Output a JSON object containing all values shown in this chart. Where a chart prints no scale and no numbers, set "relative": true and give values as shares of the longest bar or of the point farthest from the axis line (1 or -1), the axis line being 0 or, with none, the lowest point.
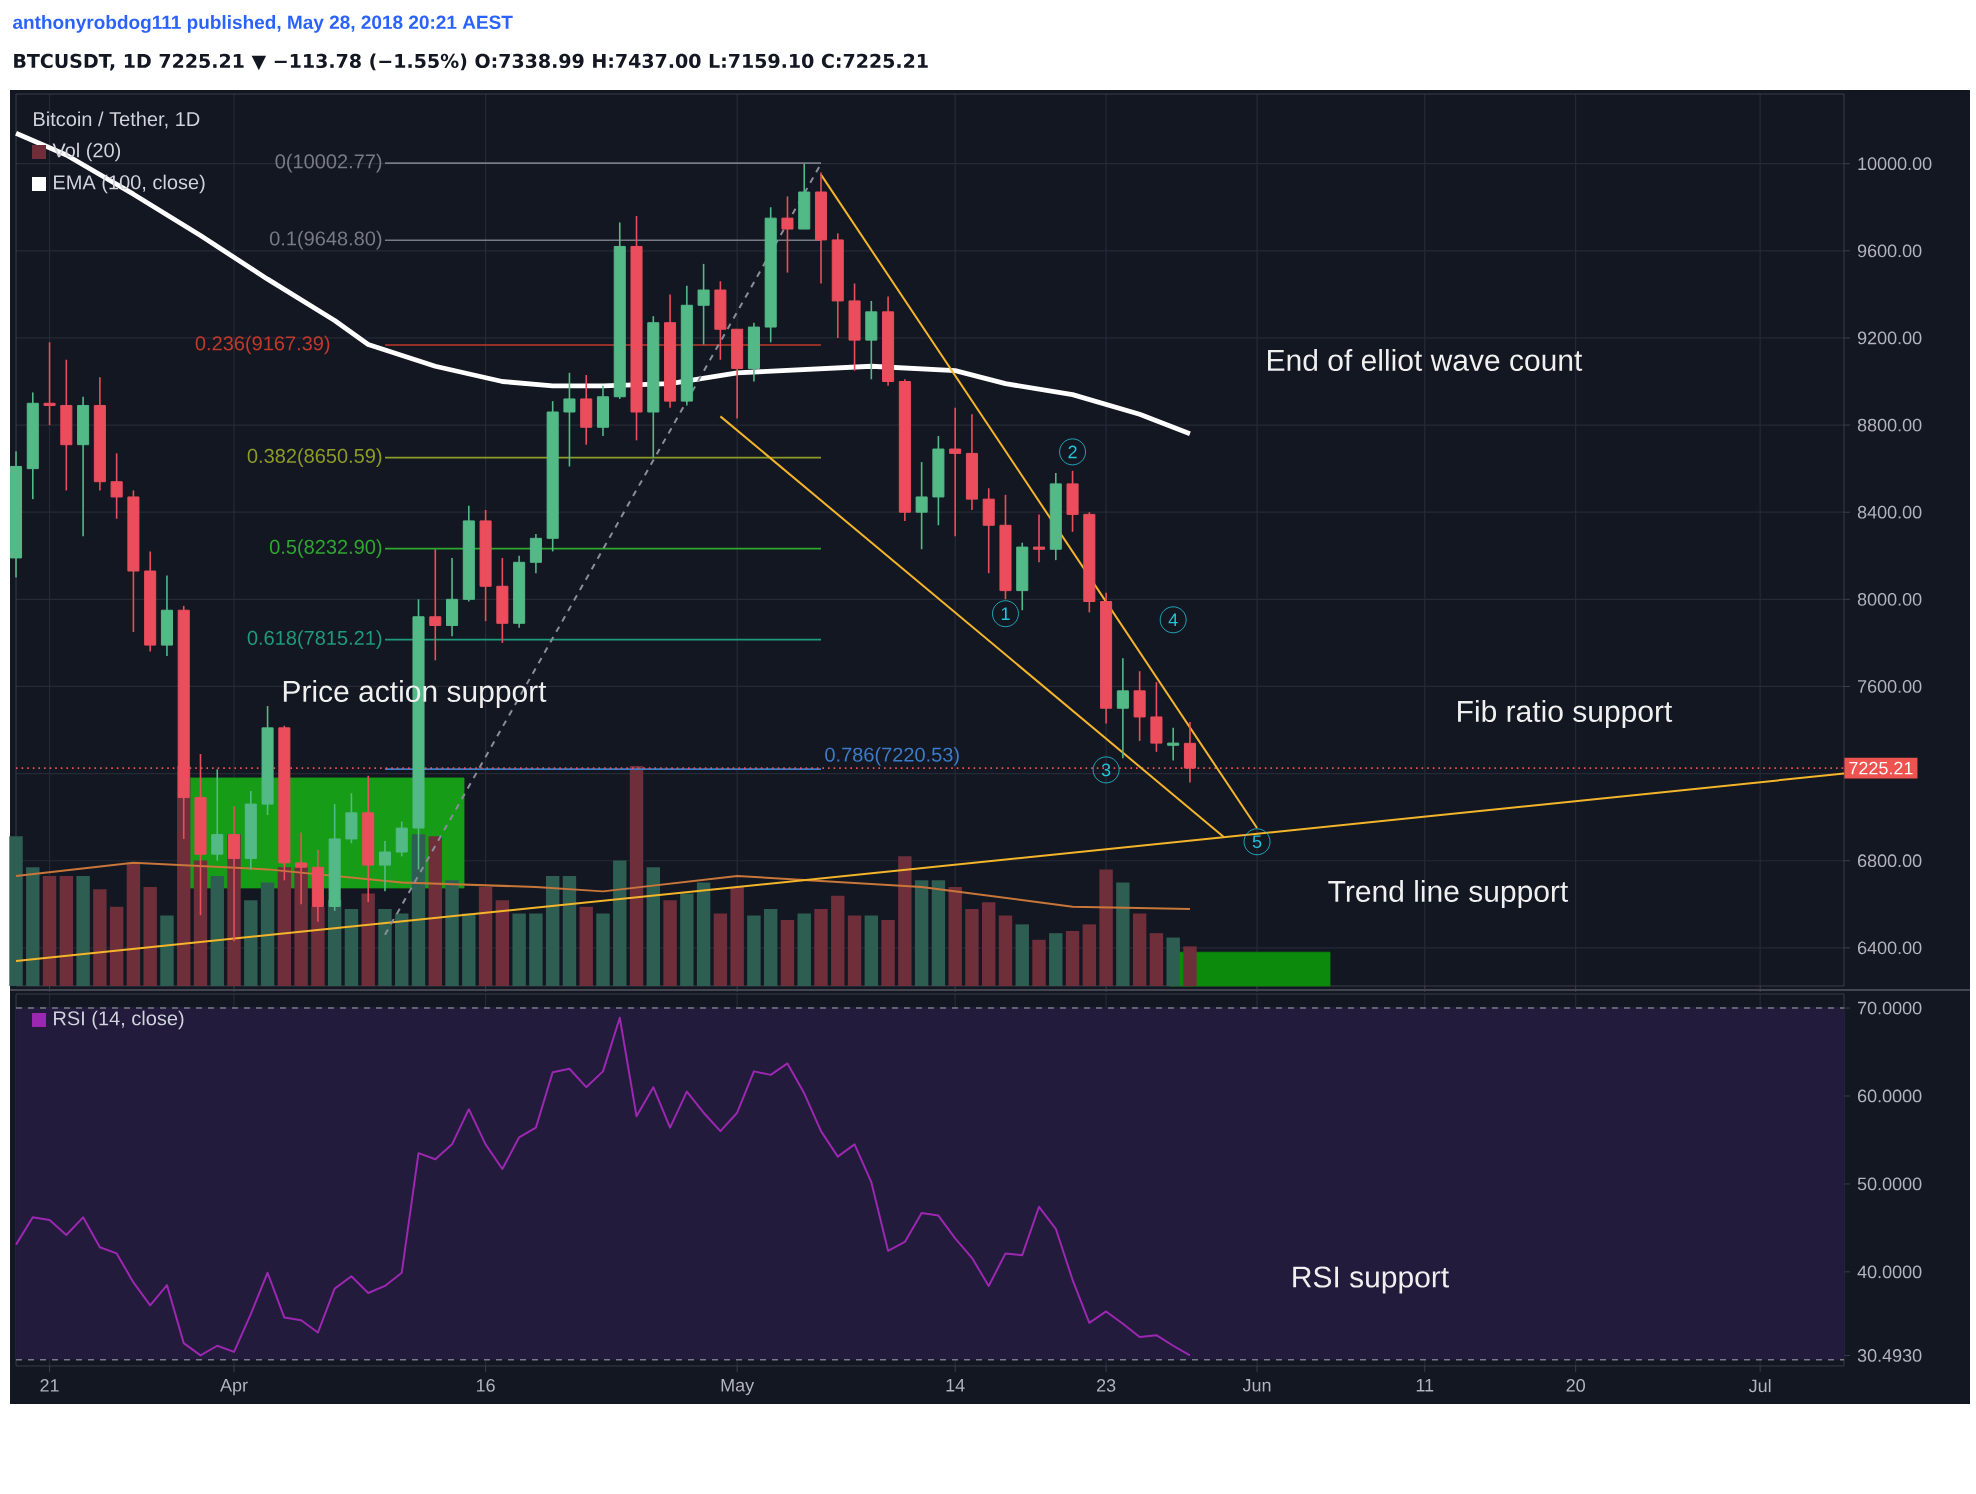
{
  "chart_data": [
    {
      "type": "candlestick",
      "title": "Bitcoin / Tether, 1D",
      "annotations": [
        "anthonyrobdog111 published, May 28, 2018 20:21 AEST",
        "BTCUSDT, 1D  7225.21 ▼ −113.78 (−1.55%)  O:7338.99 H:7437.00 L:7159.10 C:7225.21",
        "Price action support",
        "End of elliot wave count",
        "Fib ratio support",
        "Trend line support",
        {
          "text": "1",
          "x": "2018-05-17",
          "y": 7934
        },
        {
          "text": "2",
          "x": "2018-05-21",
          "y": 8677
        },
        {
          "text": "3",
          "x": "2018-05-23",
          "y": 7217
        },
        {
          "text": "4",
          "x": "2018-05-27",
          "y": 7906
        },
        {
          "text": "5",
          "x": "2018-06-01",
          "y": 6887
        }
      ],
      "x": [
        "2018-03-19",
        "2018-03-20",
        "2018-03-21",
        "2018-03-22",
        "2018-03-23",
        "2018-03-24",
        "2018-03-25",
        "2018-03-26",
        "2018-03-27",
        "2018-03-28",
        "2018-03-29",
        "2018-03-30",
        "2018-03-31",
        "2018-04-01",
        "2018-04-02",
        "2018-04-03",
        "2018-04-04",
        "2018-04-05",
        "2018-04-06",
        "2018-04-07",
        "2018-04-08",
        "2018-04-09",
        "2018-04-10",
        "2018-04-11",
        "2018-04-12",
        "2018-04-13",
        "2018-04-14",
        "2018-04-15",
        "2018-04-16",
        "2018-04-17",
        "2018-04-18",
        "2018-04-19",
        "2018-04-20",
        "2018-04-21",
        "2018-04-22",
        "2018-04-23",
        "2018-04-24",
        "2018-04-25",
        "2018-04-26",
        "2018-04-27",
        "2018-04-28",
        "2018-04-29",
        "2018-04-30",
        "2018-05-01",
        "2018-05-02",
        "2018-05-03",
        "2018-05-04",
        "2018-05-05",
        "2018-05-06",
        "2018-05-07",
        "2018-05-08",
        "2018-05-09",
        "2018-05-10",
        "2018-05-11",
        "2018-05-12",
        "2018-05-13",
        "2018-05-14",
        "2018-05-15",
        "2018-05-16",
        "2018-05-17",
        "2018-05-18",
        "2018-05-19",
        "2018-05-20",
        "2018-05-21",
        "2018-05-22",
        "2018-05-23",
        "2018-05-24",
        "2018-05-25",
        "2018-05-26",
        "2018-05-27",
        "2018-05-28"
      ],
      "ohlc": [
        [
          8190,
          8680,
          8100,
          8610
        ],
        [
          8600,
          8950,
          8460,
          8900
        ],
        [
          8900,
          9180,
          8800,
          8890
        ],
        [
          8890,
          9100,
          8500,
          8710
        ],
        [
          8710,
          8930,
          8290,
          8890
        ],
        [
          8890,
          9020,
          8500,
          8540
        ],
        [
          8540,
          8670,
          8370,
          8470
        ],
        [
          8470,
          8500,
          7850,
          8130
        ],
        [
          8130,
          8220,
          7760,
          7790
        ],
        [
          7790,
          8110,
          7740,
          7950
        ],
        [
          7950,
          7970,
          6900,
          7090
        ],
        [
          7090,
          7290,
          6550,
          6830
        ],
        [
          6830,
          7220,
          6800,
          6920
        ],
        [
          6920,
          7050,
          6430,
          6810
        ],
        [
          6810,
          7120,
          6760,
          7060
        ],
        [
          7060,
          7510,
          7010,
          7410
        ],
        [
          7410,
          7420,
          6710,
          6790
        ],
        [
          6790,
          6930,
          6600,
          6770
        ],
        [
          6770,
          6850,
          6520,
          6590
        ],
        [
          6590,
          7060,
          6570,
          6900
        ],
        [
          6900,
          7110,
          6880,
          7020
        ],
        [
          7020,
          7190,
          6610,
          6780
        ],
        [
          6780,
          6890,
          6660,
          6840
        ],
        [
          6840,
          6980,
          6820,
          6950
        ],
        [
          6950,
          8000,
          6760,
          7920
        ],
        [
          7920,
          8230,
          7720,
          7880
        ],
        [
          7880,
          8190,
          7830,
          8000
        ],
        [
          8000,
          8430,
          7990,
          8360
        ],
        [
          8360,
          8410,
          7900,
          8060
        ],
        [
          8060,
          8190,
          7800,
          7890
        ],
        [
          7890,
          8200,
          7870,
          8170
        ],
        [
          8170,
          8300,
          8120,
          8280
        ],
        [
          8280,
          8910,
          8220,
          8860
        ],
        [
          8860,
          9040,
          8610,
          8920
        ],
        [
          8920,
          9030,
          8710,
          8790
        ],
        [
          8790,
          8980,
          8750,
          8930
        ],
        [
          8930,
          9730,
          8920,
          9620
        ],
        [
          9620,
          9760,
          8730,
          8860
        ],
        [
          8860,
          9300,
          8650,
          9270
        ],
        [
          9270,
          9400,
          8880,
          8910
        ],
        [
          8910,
          9440,
          8890,
          9350
        ],
        [
          9350,
          9540,
          9170,
          9420
        ],
        [
          9420,
          9460,
          9100,
          9240
        ],
        [
          9240,
          9240,
          8830,
          9060
        ],
        [
          9060,
          9270,
          9000,
          9250
        ],
        [
          9250,
          9800,
          9180,
          9750
        ],
        [
          9750,
          9850,
          9500,
          9700
        ],
        [
          9700,
          10000,
          9700,
          9870
        ],
        [
          9870,
          9960,
          9450,
          9650
        ],
        [
          9650,
          9680,
          9200,
          9370
        ],
        [
          9370,
          9450,
          9050,
          9190
        ],
        [
          9190,
          9370,
          9010,
          9320
        ],
        [
          9320,
          9390,
          8980,
          9000
        ],
        [
          9000,
          9010,
          8360,
          8400
        ],
        [
          8400,
          8630,
          8230,
          8470
        ],
        [
          8470,
          8750,
          8340,
          8690
        ],
        [
          8690,
          8880,
          8290,
          8670
        ],
        [
          8670,
          8850,
          8410,
          8460
        ],
        [
          8460,
          8510,
          8120,
          8340
        ],
        [
          8340,
          8480,
          8000,
          8040
        ],
        [
          8040,
          8260,
          7950,
          8240
        ],
        [
          8240,
          8390,
          8170,
          8230
        ],
        [
          8230,
          8580,
          8180,
          8530
        ],
        [
          8530,
          8590,
          8310,
          8390
        ],
        [
          8390,
          8400,
          7940,
          7990
        ],
        [
          7990,
          8030,
          7430,
          7500
        ],
        [
          7500,
          7730,
          7270,
          7580
        ],
        [
          7580,
          7670,
          7350,
          7460
        ],
        [
          7460,
          7620,
          7300,
          7340
        ],
        [
          7330,
          7410,
          7260,
          7340
        ],
        [
          7338.99,
          7437,
          7159.1,
          7225.21
        ]
      ],
      "series": [
        {
          "name": "EMA (100, close)",
          "type": "line",
          "color": "#ffffff",
          "x": [
            "2018-03-19",
            "2018-03-22",
            "2018-03-26",
            "2018-03-30",
            "2018-04-03",
            "2018-04-07",
            "2018-04-09",
            "2018-04-13",
            "2018-04-17",
            "2018-04-20",
            "2018-04-23",
            "2018-04-27",
            "2018-05-01",
            "2018-05-09",
            "2018-05-14",
            "2018-05-17",
            "2018-05-21",
            "2018-05-25",
            "2018-05-28"
          ],
          "values": [
            10140,
            10040,
            9860,
            9670,
            9470,
            9280,
            9170,
            9070,
            9000,
            8980,
            8980,
            8990,
            9040,
            9070,
            9050,
            8990,
            8940,
            8850,
            8760
          ]
        },
        {
          "type": "line",
          "color": "#f5b52a",
          "x": [
            "2018-03-19",
            "2018-07-06"
          ],
          "values": [
            6340,
            7200
          ]
        },
        {
          "type": "line",
          "color": "#f5b52a",
          "x": [
            "2018-05-06",
            "2018-06-01"
          ],
          "values": [
            9950,
            6950
          ]
        },
        {
          "type": "line",
          "color": "#f5b52a",
          "x": [
            "2018-04-30",
            "2018-05-30"
          ],
          "values": [
            8840,
            6910
          ]
        },
        {
          "type": "line",
          "color": "#8a8e99",
          "line_style": "dashed",
          "x": [
            "2018-04-10",
            "2018-05-06"
          ],
          "values": [
            6460,
            10000
          ]
        }
      ],
      "xlim": [
        "2018-03-19",
        "2018-07-06"
      ],
      "xticks": [
        {
          "value": "2018-03-21",
          "label": null
        },
        {
          "value": "2018-04-01",
          "label": null
        },
        {
          "value": "2018-04-16",
          "label": null
        },
        {
          "value": "2018-05-01",
          "label": null
        },
        {
          "value": "2018-05-14",
          "label": null
        },
        {
          "value": "2018-05-23",
          "label": null
        },
        {
          "value": "2018-06-01",
          "label": null
        },
        {
          "value": "2018-06-11",
          "label": null
        },
        {
          "value": "2018-06-20",
          "label": null
        },
        {
          "value": "2018-07-01",
          "label": null
        }
      ],
      "ylim": [
        6225,
        10320
      ],
      "yticks": [
        {
          "value": 6400,
          "label": "6400.00"
        },
        {
          "value": 6800,
          "label": "6800.00"
        },
        {
          "value": 7200,
          "label": null
        },
        {
          "value": 7600,
          "label": "7600.00"
        },
        {
          "value": 8000,
          "label": "8000.00"
        },
        {
          "value": 8400,
          "label": "8400.00"
        },
        {
          "value": 8800,
          "label": "8800.00"
        },
        {
          "value": 9200,
          "label": "9200.00"
        },
        {
          "value": 9600,
          "label": "9600.00"
        },
        {
          "value": 10000,
          "label": "10000.00"
        }
      ],
      "grid": true,
      "tick_labels": "y",
      "ref_lines": [
        {
          "axis": "y",
          "value": 10002.77,
          "label": "0(10002.77)",
          "color": "#787b86"
        },
        {
          "axis": "y",
          "value": 9648.8,
          "label": "0.1(9648.80)",
          "color": "#787b86"
        },
        {
          "axis": "y",
          "value": 9167.39,
          "label": "0.236(9167.39)",
          "color": "#c0392b"
        },
        {
          "axis": "y",
          "value": 8650.59,
          "label": "0.382(8650.59)",
          "color": "#8d9b27"
        },
        {
          "axis": "y",
          "value": 8232.9,
          "label": "0.5(8232.90)",
          "color": "#2fa82f"
        },
        {
          "axis": "y",
          "value": 7815.21,
          "label": "0.618(7815.21)",
          "color": "#1f9a7a"
        },
        {
          "axis": "y",
          "value": 7220.53,
          "label": "0.786(7220.53)",
          "color": "#3d7cc9"
        },
        {
          "axis": "y",
          "value": 7225.21,
          "label": "7225.21",
          "color": "#ef5350",
          "line_style": "dotted"
        }
      ],
      "bands": [
        {
          "axis": "y",
          "from": 6675,
          "to": 7180,
          "color": "#169c16"
        },
        {
          "axis": "y",
          "from": 6225,
          "to": 6380,
          "color": "#0c8a0c"
        }
      ]
    },
    {
      "type": "bar",
      "relative": true,
      "tick_labels": false,
      "x": [
        "2018-03-19",
        "2018-03-20",
        "2018-03-21",
        "2018-03-22",
        "2018-03-23",
        "2018-03-24",
        "2018-03-25",
        "2018-03-26",
        "2018-03-27",
        "2018-03-28",
        "2018-03-29",
        "2018-03-30",
        "2018-03-31",
        "2018-04-01",
        "2018-04-02",
        "2018-04-03",
        "2018-04-04",
        "2018-04-05",
        "2018-04-06",
        "2018-04-07",
        "2018-04-08",
        "2018-04-09",
        "2018-04-10",
        "2018-04-11",
        "2018-04-12",
        "2018-04-13",
        "2018-04-14",
        "2018-04-15",
        "2018-04-16",
        "2018-04-17",
        "2018-04-18",
        "2018-04-19",
        "2018-04-20",
        "2018-04-21",
        "2018-04-22",
        "2018-04-23",
        "2018-04-24",
        "2018-04-25",
        "2018-04-26",
        "2018-04-27",
        "2018-04-28",
        "2018-04-29",
        "2018-04-30",
        "2018-05-01",
        "2018-05-02",
        "2018-05-03",
        "2018-05-04",
        "2018-05-05",
        "2018-05-06",
        "2018-05-07",
        "2018-05-08",
        "2018-05-09",
        "2018-05-10",
        "2018-05-11",
        "2018-05-12",
        "2018-05-13",
        "2018-05-14",
        "2018-05-15",
        "2018-05-16",
        "2018-05-17",
        "2018-05-18",
        "2018-05-19",
        "2018-05-20",
        "2018-05-21",
        "2018-05-22",
        "2018-05-23",
        "2018-05-24",
        "2018-05-25",
        "2018-05-26",
        "2018-05-27",
        "2018-05-28"
      ],
      "series": [
        {
          "name": "Vol (20)",
          "values": [
            0.68,
            0.54,
            0.5,
            0.5,
            0.5,
            0.44,
            0.36,
            0.56,
            0.45,
            0.32,
            1.0,
            0.57,
            0.5,
            0.69,
            0.39,
            0.47,
            0.54,
            0.54,
            0.36,
            0.39,
            0.35,
            0.42,
            0.35,
            0.33,
            0.69,
            0.68,
            0.48,
            0.33,
            0.45,
            0.39,
            0.33,
            0.33,
            0.5,
            0.5,
            0.36,
            0.33,
            0.57,
            1.0,
            0.54,
            0.39,
            0.42,
            0.47,
            0.33,
            0.45,
            0.32,
            0.35,
            0.3,
            0.33,
            0.35,
            0.41,
            0.32,
            0.32,
            0.3,
            0.59,
            0.48,
            0.48,
            0.45,
            0.35,
            0.38,
            0.32,
            0.28,
            0.21,
            0.24,
            0.25,
            0.28,
            0.53,
            0.47,
            0.33,
            0.24,
            0.22,
            0.18
          ],
          "colors": [
            "#2e5e52",
            "#2e5e52",
            "#6e2f3b",
            "#6e2f3b",
            "#2e5e52",
            "#6e2f3b",
            "#6e2f3b",
            "#6e2f3b",
            "#6e2f3b",
            "#2e5e52",
            "#6e2f3b",
            "#6e2f3b",
            "#2e5e52",
            "#6e2f3b",
            "#2e5e52",
            "#2e5e52",
            "#6e2f3b",
            "#6e2f3b",
            "#6e2f3b",
            "#2e5e52",
            "#2e5e52",
            "#6e2f3b",
            "#2e5e52",
            "#2e5e52",
            "#2e5e52",
            "#6e2f3b",
            "#2e5e52",
            "#2e5e52",
            "#6e2f3b",
            "#6e2f3b",
            "#2e5e52",
            "#2e5e52",
            "#2e5e52",
            "#2e5e52",
            "#6e2f3b",
            "#2e5e52",
            "#2e5e52",
            "#6e2f3b",
            "#2e5e52",
            "#6e2f3b",
            "#2e5e52",
            "#2e5e52",
            "#6e2f3b",
            "#6e2f3b",
            "#2e5e52",
            "#2e5e52",
            "#6e2f3b",
            "#2e5e52",
            "#6e2f3b",
            "#6e2f3b",
            "#6e2f3b",
            "#2e5e52",
            "#6e2f3b",
            "#6e2f3b",
            "#2e5e52",
            "#2e5e52",
            "#6e2f3b",
            "#6e2f3b",
            "#6e2f3b",
            "#6e2f3b",
            "#2e5e52",
            "#6e2f3b",
            "#2e5e52",
            "#6e2f3b",
            "#6e2f3b",
            "#6e2f3b",
            "#2e5e52",
            "#6e2f3b",
            "#6e2f3b",
            "#2e5e52",
            "#6e2f3b"
          ]
        },
        {
          "type": "line",
          "color": "#c8763a",
          "x": [
            "2018-03-19",
            "2018-03-26",
            "2018-04-03",
            "2018-04-11",
            "2018-04-19",
            "2018-04-23",
            "2018-05-01",
            "2018-05-12",
            "2018-05-21",
            "2018-05-28"
          ],
          "values": [
            0.5,
            0.56,
            0.53,
            0.47,
            0.45,
            0.43,
            0.5,
            0.45,
            0.36,
            0.35
          ]
        }
      ],
      "xlim": [
        "2018-03-19",
        "2018-07-06"
      ]
    },
    {
      "type": "line",
      "x": [
        "2018-03-19",
        "2018-03-20",
        "2018-03-21",
        "2018-03-22",
        "2018-03-23",
        "2018-03-24",
        "2018-03-25",
        "2018-03-26",
        "2018-03-27",
        "2018-03-28",
        "2018-03-29",
        "2018-03-30",
        "2018-03-31",
        "2018-04-01",
        "2018-04-02",
        "2018-04-03",
        "2018-04-04",
        "2018-04-05",
        "2018-04-06",
        "2018-04-07",
        "2018-04-08",
        "2018-04-09",
        "2018-04-10",
        "2018-04-11",
        "2018-04-12",
        "2018-04-13",
        "2018-04-14",
        "2018-04-15",
        "2018-04-16",
        "2018-04-17",
        "2018-04-18",
        "2018-04-19",
        "2018-04-20",
        "2018-04-21",
        "2018-04-22",
        "2018-04-23",
        "2018-04-24",
        "2018-04-25",
        "2018-04-26",
        "2018-04-27",
        "2018-04-28",
        "2018-04-29",
        "2018-04-30",
        "2018-05-01",
        "2018-05-02",
        "2018-05-03",
        "2018-05-04",
        "2018-05-05",
        "2018-05-06",
        "2018-05-07",
        "2018-05-08",
        "2018-05-09",
        "2018-05-10",
        "2018-05-11",
        "2018-05-12",
        "2018-05-13",
        "2018-05-14",
        "2018-05-15",
        "2018-05-16",
        "2018-05-17",
        "2018-05-18",
        "2018-05-19",
        "2018-05-20",
        "2018-05-21",
        "2018-05-22",
        "2018-05-23",
        "2018-05-24",
        "2018-05-25",
        "2018-05-26",
        "2018-05-27",
        "2018-05-28"
      ],
      "series": [
        {
          "name": "RSI (14, close)",
          "color": "#9c27b0",
          "values": [
            43.1,
            46.2,
            45.9,
            44.2,
            46.2,
            42.8,
            42.1,
            38.8,
            36.2,
            38.5,
            31.9,
            30.5,
            31.6,
            30.9,
            35.2,
            39.9,
            34.8,
            34.5,
            33.1,
            38.1,
            39.5,
            37.6,
            38.4,
            39.9,
            53.5,
            52.8,
            54.5,
            58.5,
            54.5,
            51.7,
            55.3,
            56.4,
            62.7,
            63.1,
            61.0,
            62.8,
            68.9,
            57.7,
            61.0,
            56.4,
            60.5,
            58.1,
            56.0,
            58.1,
            62.8,
            62.4,
            63.7,
            60.3,
            56.0,
            53.1,
            54.5,
            50.2,
            42.4,
            43.4,
            46.7,
            46.4,
            43.8,
            41.6,
            38.4,
            42.1,
            41.9,
            47.4,
            44.9,
            39.1,
            34.2,
            35.5,
            34.1,
            32.6,
            32.8,
            31.6,
            30.5
          ]
        }
      ],
      "annotations": [
        "RSI support"
      ],
      "xlim": [
        "2018-03-19",
        "2018-07-06"
      ],
      "xticks": [
        {
          "value": "2018-03-21",
          "label": "21"
        },
        {
          "value": "2018-04-01",
          "label": "Apr"
        },
        {
          "value": "2018-04-16",
          "label": "16"
        },
        {
          "value": "2018-05-01",
          "label": "May"
        },
        {
          "value": "2018-05-14",
          "label": "14"
        },
        {
          "value": "2018-05-23",
          "label": "23"
        },
        {
          "value": "2018-06-01",
          "label": "Jun"
        },
        {
          "value": "2018-06-11",
          "label": "11"
        },
        {
          "value": "2018-06-20",
          "label": "20"
        },
        {
          "value": "2018-07-01",
          "label": "Jul"
        }
      ],
      "ylim": [
        29.3,
        71.6
      ],
      "yticks": [
        {
          "value": 30.493,
          "label": "30.4930"
        },
        {
          "value": 40,
          "label": "40.0000"
        },
        {
          "value": 50,
          "label": "50.0000"
        },
        {
          "value": 60,
          "label": "60.0000"
        },
        {
          "value": 70,
          "label": "70.0000"
        }
      ],
      "grid": true,
      "ref_lines": [
        {
          "axis": "y",
          "value": 70,
          "color": "#787b86",
          "line_style": "dashed"
        },
        {
          "axis": "y",
          "value": 30,
          "color": "#787b86",
          "line_style": "dashed"
        }
      ],
      "bands": [
        {
          "axis": "y",
          "from": 30,
          "to": 70,
          "color": "#221b3b"
        }
      ]
    }
  ]
}
